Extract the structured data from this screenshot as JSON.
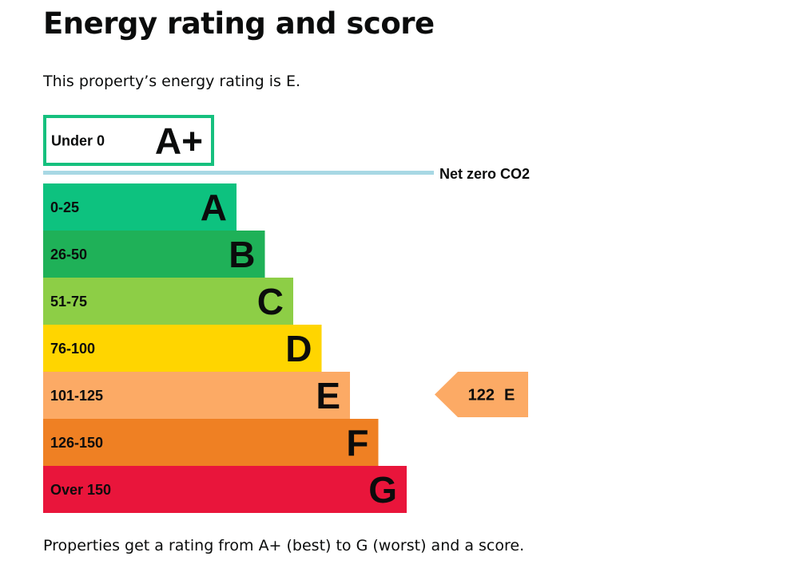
{
  "page": {
    "title": "Energy rating and score",
    "intro": "This property’s energy rating is E.",
    "footer": "Properties get a rating from A+ (best) to G (worst) and a score."
  },
  "chart_data": {
    "type": "bar",
    "orientation": "horizontal",
    "categories": [
      "A+",
      "A",
      "B",
      "C",
      "D",
      "E",
      "F",
      "G"
    ],
    "ranges": [
      "Under 0",
      "0-25",
      "26-50",
      "51-75",
      "76-100",
      "101-125",
      "126-150",
      "Over 150"
    ],
    "colors": [
      "#ffffff",
      "#0dc27f",
      "#1fb158",
      "#8dce46",
      "#ffd500",
      "#fcaa65",
      "#ef8023",
      "#e9153b"
    ],
    "outline_color": "#16c07e",
    "net_zero": {
      "label": "Net zero CO2",
      "color": "#a8d8e4"
    },
    "current": {
      "score": "122",
      "rating": "E",
      "color": "#fcaa65"
    }
  }
}
